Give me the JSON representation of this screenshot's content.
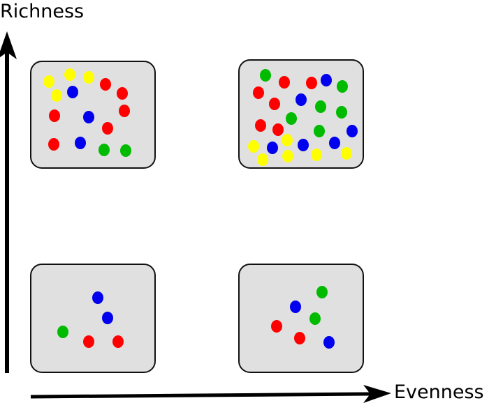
{
  "axes": {
    "y_label": "Richness",
    "x_label": "Evenness"
  },
  "colors": {
    "red": "#ff0000",
    "blue": "#0000ee",
    "green": "#00bb00",
    "yellow": "#ffff00",
    "panel_fill": "#e0e0e0",
    "panel_stroke": "#111111",
    "axis": "#000000"
  },
  "panels": [
    {
      "name": "high-richness-low-evenness",
      "richness": "high",
      "evenness": "low",
      "dot_count": 17,
      "colors_present": [
        "yellow",
        "red",
        "blue",
        "green"
      ]
    },
    {
      "name": "high-richness-high-evenness",
      "richness": "high",
      "evenness": "high",
      "dot_count": 29,
      "colors_present": [
        "green",
        "red",
        "blue",
        "yellow"
      ]
    },
    {
      "name": "low-richness-low-evenness",
      "richness": "low",
      "evenness": "low",
      "dot_count": 5,
      "colors_present": [
        "blue",
        "green",
        "red"
      ]
    },
    {
      "name": "low-richness-high-evenness",
      "richness": "low",
      "evenness": "high",
      "dot_count": 7,
      "colors_present": [
        "green",
        "blue",
        "red"
      ]
    }
  ]
}
